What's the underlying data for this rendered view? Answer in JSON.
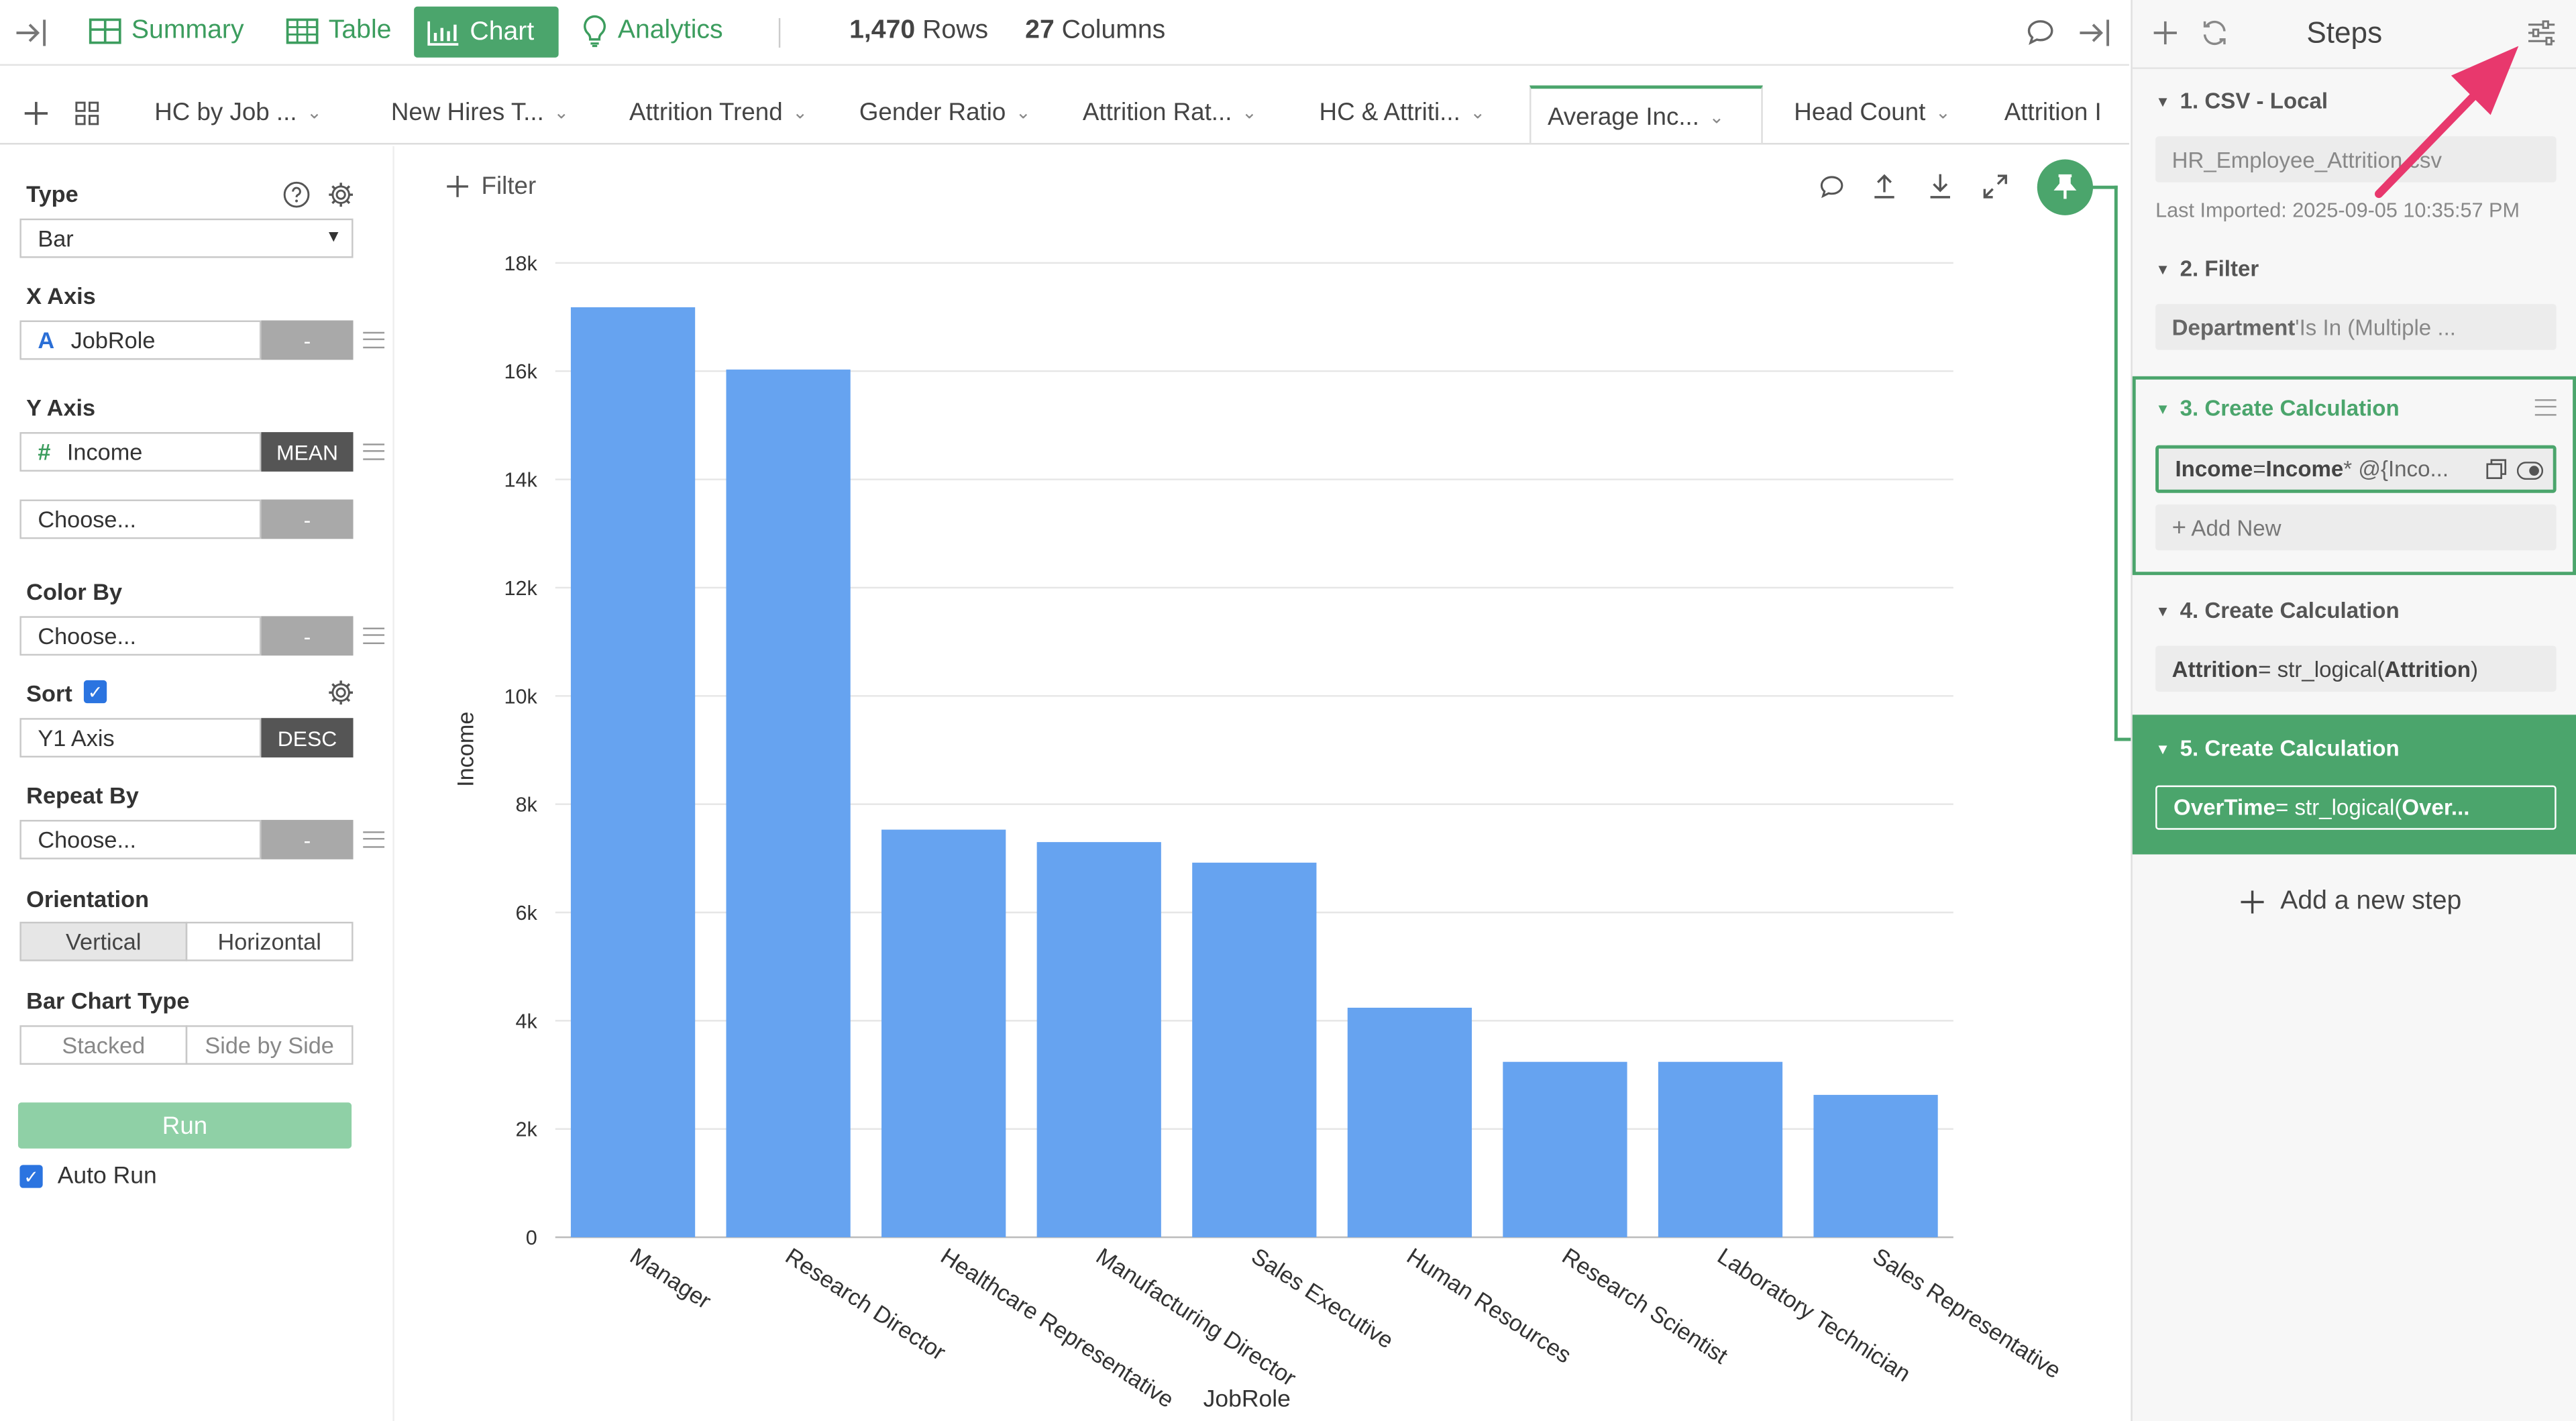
{
  "toolbar": {
    "summary": "Summary",
    "table": "Table",
    "chart": "Chart",
    "analytics": "Analytics",
    "rows_count": "1,470",
    "rows_label": "Rows",
    "cols_count": "27",
    "cols_label": "Columns"
  },
  "tabs": [
    {
      "label": "HC by Job ..."
    },
    {
      "label": "New Hires T..."
    },
    {
      "label": "Attrition Trend"
    },
    {
      "label": "Gender Ratio"
    },
    {
      "label": "Attrition Rat..."
    },
    {
      "label": "HC & Attriti..."
    },
    {
      "label": "Average Inc..."
    },
    {
      "label": "Head Count"
    },
    {
      "label": "Attrition I"
    }
  ],
  "config": {
    "type_label": "Type",
    "type_value": "Bar",
    "xaxis_label": "X Axis",
    "xaxis_icon": "A",
    "xaxis_value": "JobRole",
    "xaxis_side": "-",
    "yaxis_label": "Y Axis",
    "yaxis_icon": "#",
    "yaxis_value": "Income",
    "yaxis_side": "MEAN",
    "yaxis2_value": "Choose...",
    "yaxis2_side": "-",
    "colorby_label": "Color By",
    "colorby_value": "Choose...",
    "colorby_side": "-",
    "sort_label": "Sort",
    "sort_value": "Y1 Axis",
    "sort_side": "DESC",
    "repeatby_label": "Repeat By",
    "repeatby_value": "Choose...",
    "repeatby_side": "-",
    "orientation_label": "Orientation",
    "orient_vertical": "Vertical",
    "orient_horizontal": "Horizontal",
    "barchart_type_label": "Bar Chart Type",
    "bar_stacked": "Stacked",
    "bar_sidebyside": "Side by Side",
    "run": "Run",
    "autorun": "Auto Run"
  },
  "filter_label": "Filter",
  "chart_data": {
    "type": "bar",
    "categories": [
      "Manager",
      "Research Director",
      "Healthcare Representative",
      "Manufacturing Director",
      "Sales Executive",
      "Human Resources",
      "Research Scientist",
      "Laboratory Technician",
      "Sales Representative"
    ],
    "values": [
      17180,
      16030,
      7530,
      7300,
      6920,
      4240,
      3240,
      3240,
      2630
    ],
    "xlabel": "JobRole",
    "ylabel": "Income",
    "ylim": [
      0,
      18000
    ],
    "yticks": [
      0,
      2000,
      4000,
      6000,
      8000,
      10000,
      12000,
      14000,
      16000,
      18000
    ],
    "yticklabels": [
      "0",
      "2k",
      "4k",
      "6k",
      "8k",
      "10k",
      "12k",
      "14k",
      "16k",
      "18k"
    ],
    "grid": true,
    "bar_color": "#66a3f0"
  },
  "steps": {
    "title": "Steps",
    "s1_title": "1. CSV - Local",
    "s1_file": "HR_Employee_Attrition.csv",
    "s1_imported": "Last Imported: 2025-09-05 10:35:57 PM",
    "s2_title": "2. Filter",
    "s2_field": "Department",
    "s2_rest": " 'Is In (Multiple ...",
    "s3_title": "3. Create Calculation",
    "s3_lhs": "Income",
    "s3_op": " = ",
    "s3_rhs": "Income",
    "s3_rest": " * @{Inco...",
    "s3_add": "Add New",
    "s4_title": "4. Create Calculation",
    "s4_lhs": "Attrition",
    "s4_op": " = str_logical(",
    "s4_arg": "Attrition",
    "s4_close": ")",
    "s5_title": "5. Create Calculation",
    "s5_lhs": "OverTime",
    "s5_op": " = str_logical(",
    "s5_arg": "Over...",
    "add_step": "Add a new step"
  },
  "colors": {
    "accent": "#4ba56c",
    "bar": "#66a3f0",
    "annotation_arrow": "#e8386d"
  }
}
